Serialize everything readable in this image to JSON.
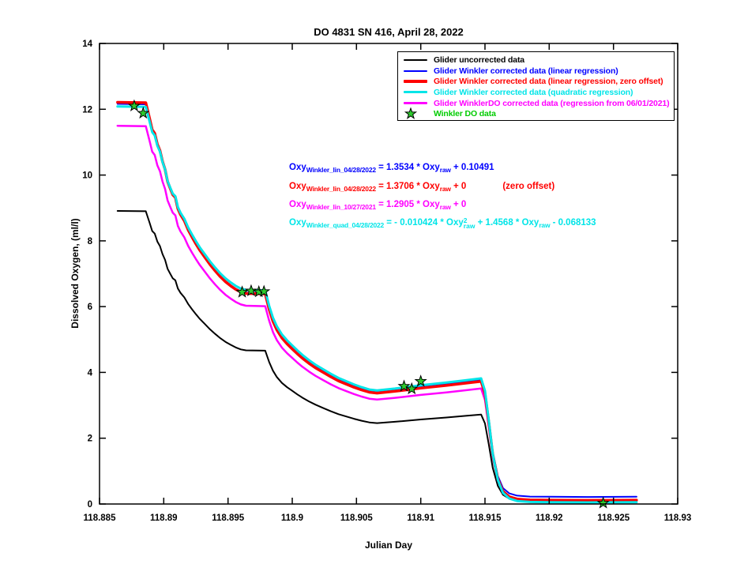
{
  "title": "DO 4831 SN 416, April 28, 2022",
  "axes": {
    "x": {
      "label": "Julian Day",
      "min": 118.885,
      "max": 118.93,
      "ticks": [
        118.885,
        118.89,
        118.895,
        118.9,
        118.905,
        118.91,
        118.915,
        118.92,
        118.925,
        118.93
      ],
      "tick_labels": [
        "118.885",
        "118.89",
        "118.895",
        "118.9",
        "118.905",
        "118.91",
        "118.915",
        "118.92",
        "118.925",
        "118.93"
      ]
    },
    "y": {
      "label": "Dissolved Oxygen, (ml/l)",
      "min": 0,
      "max": 14,
      "ticks": [
        0,
        2,
        4,
        6,
        8,
        10,
        12,
        14
      ],
      "tick_labels": [
        "0",
        "2",
        "4",
        "6",
        "8",
        "10",
        "12",
        "14"
      ]
    }
  },
  "colors": {
    "black": "#000000",
    "blue": "#0000FF",
    "red": "#FF0000",
    "cyan": "#00E5E8",
    "magenta": "#FF00FF",
    "green": "#00CC00",
    "star_fill": "#2DCB2D"
  },
  "legend": [
    {
      "id": "uncorrected",
      "label": "Glider uncorrected data",
      "color": "#000000",
      "marker": "line",
      "weight": 2
    },
    {
      "id": "linear",
      "label": "Glider Winkler corrected data (linear regression)",
      "color": "#0000FF",
      "marker": "line",
      "weight": 2
    },
    {
      "id": "linear_zero",
      "label": "Glider Winkler corrected data (linear regression, zero offset)",
      "color": "#FF0000",
      "marker": "line",
      "weight": 4
    },
    {
      "id": "quadratic",
      "label": "Glider Winkler corrected data (quadratic regression)",
      "color": "#00E5E8",
      "marker": "line",
      "weight": 3
    },
    {
      "id": "regression_2021",
      "label": "Glider WinklerDO corrected data (regression from 06/01/2021)",
      "color": "#FF00FF",
      "marker": "line",
      "weight": 3
    },
    {
      "id": "winkler_points",
      "label": "Winkler DO data",
      "color": "#00CC00",
      "marker": "star"
    }
  ],
  "equations": [
    {
      "color": "#0000FF",
      "segments": [
        {
          "t": "Oxy"
        },
        {
          "sub": "Winkler_lin_04/28/2022"
        },
        {
          "t": " = 1.3534 * Oxy"
        },
        {
          "sub": "raw"
        },
        {
          "t": " + 0.10491"
        }
      ]
    },
    {
      "color": "#FF0000",
      "segments": [
        {
          "t": "Oxy"
        },
        {
          "sub": "Winkler_lin_04/28/2022"
        },
        {
          "t": " = 1.3706 * Oxy"
        },
        {
          "sub": "raw"
        },
        {
          "t": " + 0"
        }
      ],
      "note": "(zero offset)"
    },
    {
      "color": "#FF00FF",
      "segments": [
        {
          "t": "Oxy"
        },
        {
          "sub": "Winkler_lin_10/27/2021"
        },
        {
          "t": " = 1.2905 * Oxy"
        },
        {
          "sub": "raw"
        },
        {
          "t": " + 0"
        }
      ]
    },
    {
      "color": "#00E5E8",
      "segments": [
        {
          "t": "Oxy"
        },
        {
          "sub": "Winkler_quad_04/28/2022"
        },
        {
          "t": " = - 0.010424 * Oxy"
        },
        {
          "stack": {
            "sup": "2",
            "sub": "raw"
          }
        },
        {
          "t": " + 1.4568 * Oxy"
        },
        {
          "sub": "raw"
        },
        {
          "t": " - 0.068133"
        }
      ]
    }
  ],
  "chart_data": {
    "type": "line",
    "title": "DO 4831 SN 416, April 28, 2022",
    "xlabel": "Julian Day",
    "ylabel": "Dissolved Oxygen, (ml/l)",
    "x_range": [
      118.885,
      118.93
    ],
    "y_range": [
      0,
      14
    ],
    "grid": false,
    "legend_position": "top-right",
    "raw_series": {
      "id": "uncorrected",
      "name": "Glider uncorrected data",
      "color": "#000000",
      "width": 2,
      "points": [
        [
          118.8864,
          8.91
        ],
        [
          118.8886,
          8.9
        ],
        [
          118.8889,
          8.55
        ],
        [
          118.8891,
          8.3
        ],
        [
          118.8893,
          8.22
        ],
        [
          118.8895,
          7.98
        ],
        [
          118.8897,
          7.84
        ],
        [
          118.8899,
          7.6
        ],
        [
          118.8901,
          7.42
        ],
        [
          118.8903,
          7.15
        ],
        [
          118.8905,
          7.0
        ],
        [
          118.8907,
          6.86
        ],
        [
          118.8909,
          6.8
        ],
        [
          118.8911,
          6.55
        ],
        [
          118.8913,
          6.42
        ],
        [
          118.8916,
          6.28
        ],
        [
          118.8919,
          6.08
        ],
        [
          118.8922,
          5.92
        ],
        [
          118.8925,
          5.77
        ],
        [
          118.8928,
          5.63
        ],
        [
          118.8932,
          5.47
        ],
        [
          118.8936,
          5.31
        ],
        [
          118.894,
          5.17
        ],
        [
          118.8944,
          5.04
        ],
        [
          118.8948,
          4.93
        ],
        [
          118.8952,
          4.84
        ],
        [
          118.8956,
          4.76
        ],
        [
          118.896,
          4.7
        ],
        [
          118.8964,
          4.67
        ],
        [
          118.8979,
          4.66
        ],
        [
          118.8982,
          4.32
        ],
        [
          118.8985,
          4.05
        ],
        [
          118.8988,
          3.86
        ],
        [
          118.8992,
          3.68
        ],
        [
          118.8996,
          3.55
        ],
        [
          118.9,
          3.44
        ],
        [
          118.9004,
          3.33
        ],
        [
          118.9008,
          3.23
        ],
        [
          118.9013,
          3.12
        ],
        [
          118.9018,
          3.02
        ],
        [
          118.9024,
          2.92
        ],
        [
          118.903,
          2.82
        ],
        [
          118.9036,
          2.73
        ],
        [
          118.9042,
          2.66
        ],
        [
          118.9048,
          2.59
        ],
        [
          118.9054,
          2.53
        ],
        [
          118.906,
          2.48
        ],
        [
          118.9066,
          2.46
        ],
        [
          118.908,
          2.5
        ],
        [
          118.91,
          2.57
        ],
        [
          118.912,
          2.63
        ],
        [
          118.9135,
          2.68
        ],
        [
          118.9147,
          2.72
        ],
        [
          118.915,
          2.45
        ],
        [
          118.9153,
          1.8
        ],
        [
          118.9156,
          1.1
        ],
        [
          118.916,
          0.55
        ],
        [
          118.9164,
          0.28
        ],
        [
          118.9169,
          0.16
        ],
        [
          118.9175,
          0.11
        ],
        [
          118.9185,
          0.09
        ],
        [
          118.92,
          0.085
        ],
        [
          118.923,
          0.08
        ],
        [
          118.9268,
          0.085
        ]
      ]
    },
    "corrected_series": [
      {
        "id": "linear",
        "name": "Glider Winkler corrected data (linear regression)",
        "color": "#0000FF",
        "width": 2,
        "type": "linear",
        "slope": 1.3534,
        "intercept": 0.10491
      },
      {
        "id": "linear_zero",
        "name": "Glider Winkler corrected data (linear regression, zero offset)",
        "color": "#FF0000",
        "width": 3.5,
        "type": "linear",
        "slope": 1.3706,
        "intercept": 0
      },
      {
        "id": "regression_2021",
        "name": "Glider WinklerDO corrected data (regression from 06/01/2021)",
        "color": "#FF00FF",
        "width": 2.5,
        "type": "linear",
        "slope": 1.2905,
        "intercept": 0
      },
      {
        "id": "quadratic",
        "name": "Glider Winkler corrected data (quadratic regression)",
        "color": "#00E5E8",
        "width": 3,
        "type": "quadratic",
        "a": -0.010424,
        "b": 1.4568,
        "c": -0.068133
      }
    ],
    "winkler_points": {
      "name": "Winkler DO data",
      "marker": "star",
      "fill": "#2DCB2D",
      "edge": "#000000",
      "points": [
        [
          118.8877,
          12.1
        ],
        [
          118.8884,
          11.88
        ],
        [
          118.8961,
          6.44
        ],
        [
          118.8968,
          6.48
        ],
        [
          118.8974,
          6.45
        ],
        [
          118.8978,
          6.46
        ],
        [
          118.9087,
          3.58
        ],
        [
          118.9093,
          3.5
        ],
        [
          118.91,
          3.73
        ],
        [
          118.9242,
          0.03
        ]
      ]
    }
  }
}
